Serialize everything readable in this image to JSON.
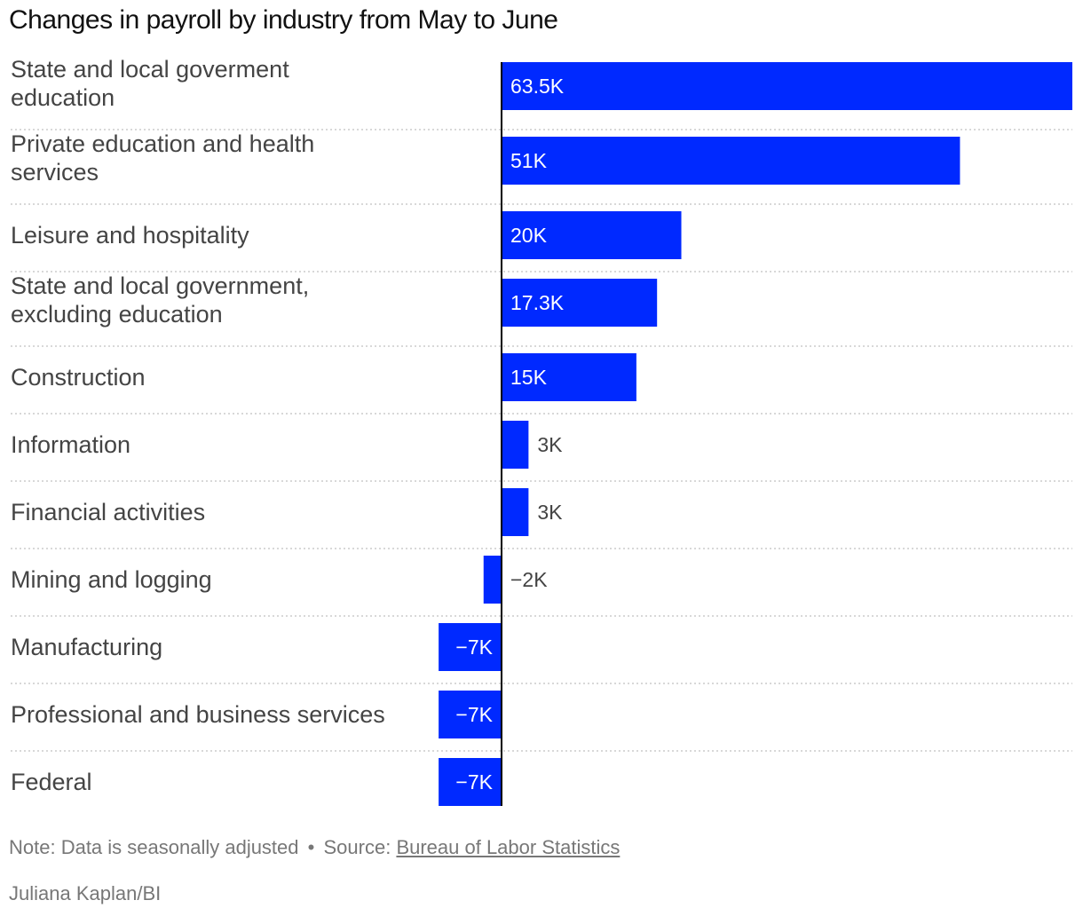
{
  "chart_data": {
    "type": "bar",
    "orientation": "horizontal",
    "title": "Changes in payroll by industry from May to June",
    "xlabel": "",
    "ylabel": "",
    "unit": "K",
    "categories": [
      [
        "State and local goverment",
        "education"
      ],
      [
        "Private education and health",
        "services"
      ],
      [
        "Leisure and hospitality"
      ],
      [
        "State and local government,",
        "excluding education"
      ],
      [
        "Construction"
      ],
      [
        "Information"
      ],
      [
        "Financial activities"
      ],
      [
        "Mining and logging"
      ],
      [
        "Manufacturing"
      ],
      [
        "Professional and business services"
      ],
      [
        "Federal"
      ]
    ],
    "values": [
      63.5,
      51,
      20,
      17.3,
      15,
      3,
      3,
      -2,
      -7,
      -7,
      -7
    ],
    "value_labels": [
      "63.5K",
      "51K",
      "20K",
      "17.3K",
      "15K",
      "3K",
      "3K",
      "−2K",
      "−7K",
      "−7K",
      "−7K"
    ],
    "xlim": [
      -7,
      63.5
    ],
    "grid": false,
    "bar_color": "#0029ff"
  },
  "footer": {
    "note": "Note: Data is seasonally adjusted",
    "separator": "•",
    "source_prefix": "Source:",
    "source_link": "Bureau of Labor Statistics",
    "credit": "Juliana Kaplan/BI"
  }
}
